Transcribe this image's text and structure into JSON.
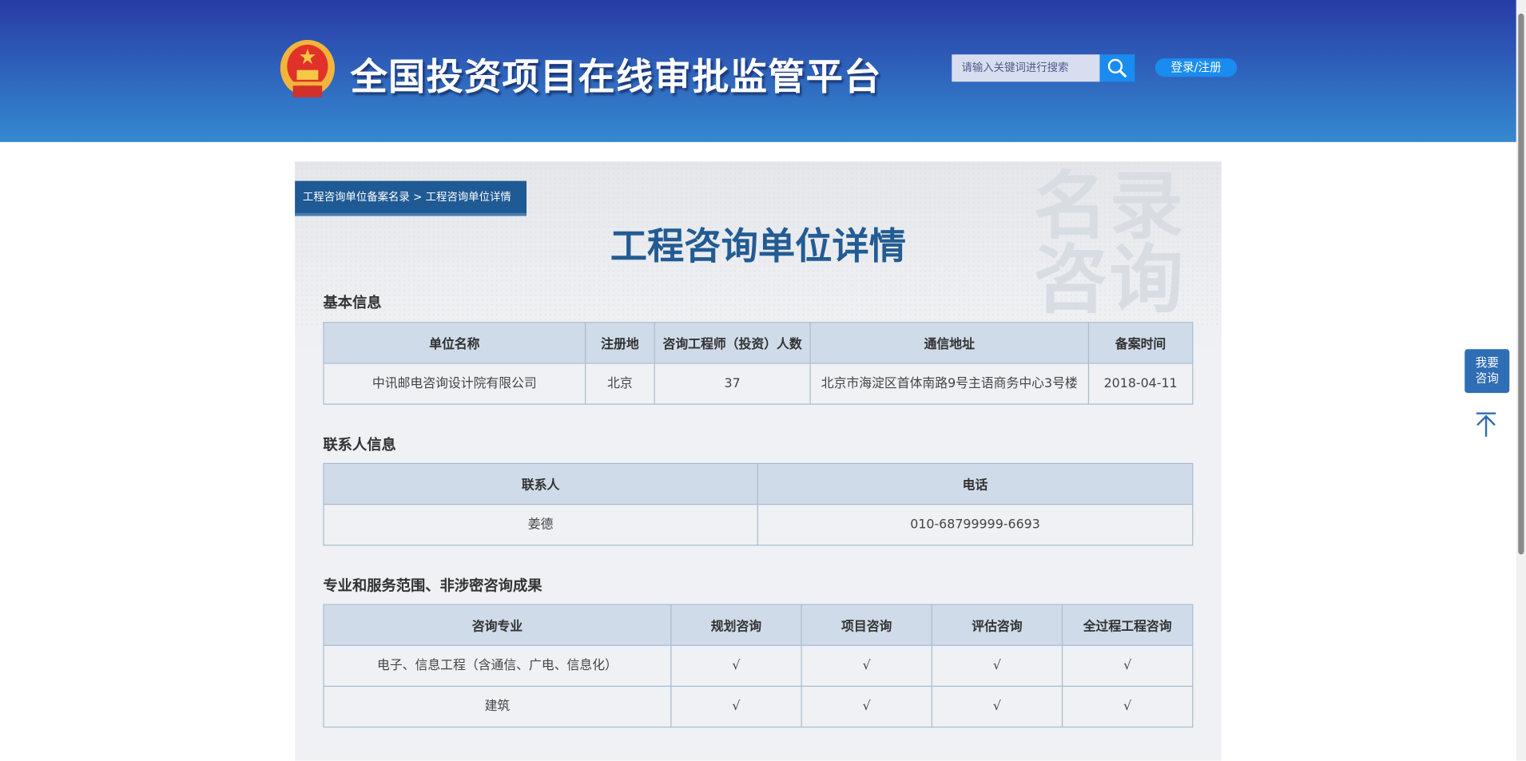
{
  "header": {
    "site_title": "全国投资项目在线审批监管平台",
    "search_placeholder": "请输入关键词进行搜索",
    "login_label": "登录/注册"
  },
  "breadcrumb": {
    "items": [
      "工程咨询单位备案名录",
      "工程咨询单位详情"
    ],
    "separator": ">"
  },
  "page_title": "工程咨询单位详情",
  "watermark": "名录咨询",
  "basic_info": {
    "title": "基本信息",
    "headers": [
      "单位名称",
      "注册地",
      "咨询工程师（投资）人数",
      "通信地址",
      "备案时间"
    ],
    "row": [
      "中讯邮电咨询设计院有限公司",
      "北京",
      "37",
      "北京市海淀区首体南路9号主语商务中心3号楼",
      "2018-04-11"
    ]
  },
  "contact_info": {
    "title": "联系人信息",
    "headers": [
      "联系人",
      "电话"
    ],
    "row": [
      "姜德",
      "010-68799999-6693"
    ]
  },
  "scope": {
    "title": "专业和服务范围、非涉密咨询成果",
    "headers": [
      "咨询专业",
      "规划咨询",
      "项目咨询",
      "评估咨询",
      "全过程工程咨询"
    ],
    "rows": [
      [
        "电子、信息工程（含通信、广电、信息化）",
        "√",
        "√",
        "√",
        "√"
      ],
      [
        "建筑",
        "√",
        "√",
        "√",
        "√"
      ]
    ]
  },
  "float": {
    "consult_label": "我要咨询"
  },
  "colors": {
    "header_top": "#283ca6",
    "header_bottom": "#3589d0",
    "accent": "#1f5a94",
    "table_header": "#cfdbe8"
  }
}
